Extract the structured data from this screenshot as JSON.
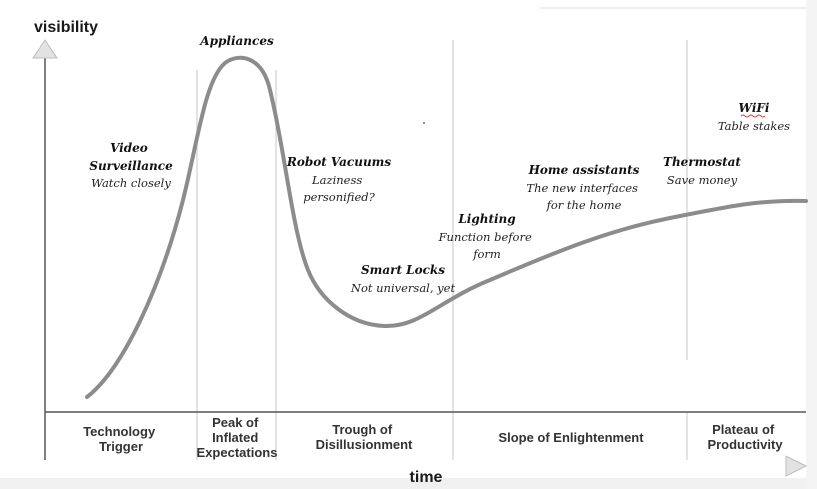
{
  "axes": {
    "y_label": "visibility",
    "x_label": "time"
  },
  "phases": [
    [
      "Technology",
      "Trigger"
    ],
    [
      "Peak of",
      "Inflated",
      "Expectations"
    ],
    [
      "Trough of",
      "Disillusionment"
    ],
    [
      "Slope of Enlightenment"
    ],
    [
      "Plateau of",
      "Productivity"
    ]
  ],
  "technologies": [
    {
      "name": "Appliances",
      "note": []
    },
    {
      "name": [
        "Video",
        "Surveillance"
      ],
      "note": [
        "Watch closely"
      ]
    },
    {
      "name": "Robot Vacuums",
      "note": [
        "Laziness",
        "personified?"
      ]
    },
    {
      "name": "Smart Locks",
      "note": [
        "Not universal, yet"
      ]
    },
    {
      "name": "Lighting",
      "note": [
        "Function before",
        "form"
      ]
    },
    {
      "name": "Home assistants",
      "note": [
        "The new interfaces",
        "for the home"
      ]
    },
    {
      "name": "Thermostat",
      "note": [
        "Save money"
      ]
    },
    {
      "name": "WiFi",
      "note": [
        "Table stakes"
      ]
    }
  ],
  "colors": {
    "curve": "#8c8c8c",
    "axis": "#555555",
    "divider": "#d0d0d0",
    "bottom_band": "#eeeeee",
    "arrow_tip": "#e2e2e2"
  }
}
